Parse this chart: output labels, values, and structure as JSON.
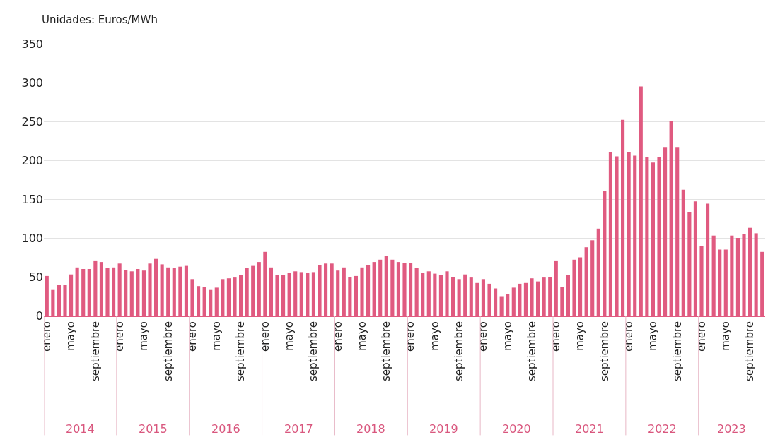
{
  "chart_data": {
    "type": "bar",
    "ylabel": "Unidades: Euros/MWh",
    "categories": [
      "enero",
      null,
      null,
      null,
      "mayo",
      null,
      null,
      null,
      "septiembre",
      null,
      null,
      null,
      "enero",
      null,
      null,
      null,
      "mayo",
      null,
      null,
      null,
      "septiembre",
      null,
      null,
      null,
      "enero",
      null,
      null,
      null,
      "mayo",
      null,
      null,
      null,
      "septiembre",
      null,
      null,
      null,
      "enero",
      null,
      null,
      null,
      "mayo",
      null,
      null,
      null,
      "septiembre",
      null,
      null,
      null,
      "enero",
      null,
      null,
      null,
      "mayo",
      null,
      null,
      null,
      "septiembre",
      null,
      null,
      null,
      "enero",
      null,
      null,
      null,
      "mayo",
      null,
      null,
      null,
      "septiembre",
      null,
      null,
      null,
      "enero",
      null,
      null,
      null,
      "mayo",
      null,
      null,
      null,
      "septiembre",
      null,
      null,
      null,
      "enero",
      null,
      null,
      null,
      "mayo",
      null,
      null,
      null,
      "septiembre",
      null,
      null,
      null,
      "enero",
      null,
      null,
      null,
      "mayo",
      null,
      null,
      null,
      "septiembre",
      null,
      null,
      null,
      "enero",
      null,
      null,
      null,
      "mayo",
      null,
      null,
      null,
      "septiembre",
      null,
      null
    ],
    "values": [
      51,
      33,
      40,
      40,
      53,
      62,
      60,
      60,
      71,
      69,
      61,
      62,
      67,
      59,
      57,
      60,
      58,
      67,
      73,
      66,
      62,
      61,
      63,
      64,
      47,
      38,
      37,
      33,
      36,
      47,
      48,
      49,
      52,
      61,
      64,
      69,
      82,
      62,
      52,
      52,
      55,
      57,
      56,
      55,
      56,
      65,
      67,
      67,
      58,
      62,
      50,
      51,
      62,
      65,
      69,
      72,
      77,
      72,
      69,
      68,
      68,
      61,
      55,
      57,
      54,
      52,
      57,
      50,
      47,
      53,
      49,
      42,
      47,
      41,
      35,
      25,
      28,
      36,
      41,
      42,
      48,
      44,
      49,
      50,
      71,
      37,
      52,
      72,
      75,
      88,
      97,
      112,
      161,
      210,
      205,
      252,
      210,
      206,
      295,
      204,
      197,
      204,
      217,
      251,
      217,
      162,
      133,
      147,
      90,
      144,
      103,
      85,
      85,
      103,
      100,
      105,
      113,
      106,
      82
    ],
    "color": "#e05a80",
    "ylim": [
      0,
      350
    ],
    "yticks": [
      0,
      50,
      100,
      150,
      200,
      250,
      300,
      350
    ],
    "grid": "y",
    "annotations": [
      "2014",
      "2015",
      "2016",
      "2017",
      "2018",
      "2019",
      "2020",
      "2021",
      "2022",
      "2023"
    ]
  }
}
